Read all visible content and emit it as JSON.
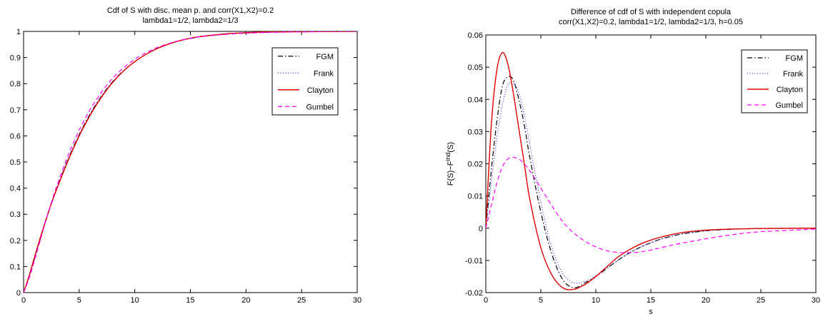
{
  "chart_data": [
    {
      "type": "line",
      "title_lines": [
        "Cdf of S with disc. mean p. and corr(X1,X2)=0.2",
        "lambda1=1/2, lambda2=1/3"
      ],
      "xlabel": "",
      "ylabel": "",
      "xlim": [
        0,
        30
      ],
      "ylim": [
        0,
        1
      ],
      "xticks": [
        0,
        5,
        10,
        15,
        20,
        25,
        30
      ],
      "xtick_labels": [
        "0",
        "5",
        "10",
        "15",
        "20",
        "25",
        "30"
      ],
      "yticks": [
        0,
        0.1,
        0.2,
        0.3,
        0.4,
        0.5,
        0.6,
        0.7,
        0.8,
        0.9,
        1
      ],
      "ytick_labels": [
        "0",
        "0.1",
        "0.2",
        "0.3",
        "0.4",
        "0.5",
        "0.6",
        "0.7",
        "0.8",
        "0.9",
        "1"
      ],
      "grid": false,
      "legend_position": "top-right",
      "x": [
        0,
        0.5,
        1,
        1.5,
        2,
        2.5,
        3,
        4,
        5,
        6,
        7,
        8,
        9,
        10,
        11,
        12,
        13,
        14,
        15,
        16,
        18,
        20,
        22,
        25,
        30
      ],
      "series": [
        {
          "name": "FGM",
          "color": "#000000",
          "dash": "dashdot",
          "values": [
            0,
            0.062,
            0.133,
            0.205,
            0.275,
            0.34,
            0.4,
            0.51,
            0.605,
            0.685,
            0.752,
            0.807,
            0.85,
            0.884,
            0.912,
            0.934,
            0.951,
            0.964,
            0.973,
            0.98,
            0.989,
            0.994,
            0.997,
            0.999,
            1.0
          ]
        },
        {
          "name": "Frank",
          "color": "#3030e0",
          "dash": "dotted",
          "values": [
            0,
            0.062,
            0.132,
            0.204,
            0.274,
            0.34,
            0.4,
            0.51,
            0.605,
            0.685,
            0.752,
            0.807,
            0.85,
            0.884,
            0.912,
            0.934,
            0.951,
            0.964,
            0.973,
            0.98,
            0.989,
            0.994,
            0.997,
            0.999,
            1.0
          ]
        },
        {
          "name": "Clayton",
          "color": "#e00000",
          "dash": "solid",
          "values": [
            0,
            0.065,
            0.138,
            0.21,
            0.278,
            0.342,
            0.398,
            0.505,
            0.6,
            0.68,
            0.748,
            0.804,
            0.849,
            0.884,
            0.912,
            0.934,
            0.951,
            0.964,
            0.974,
            0.981,
            0.99,
            0.995,
            0.998,
            0.999,
            1.0
          ]
        },
        {
          "name": "Gumbel",
          "color": "#ff00ff",
          "dash": "dashed",
          "values": [
            0,
            0.055,
            0.125,
            0.2,
            0.275,
            0.345,
            0.41,
            0.525,
            0.622,
            0.702,
            0.767,
            0.82,
            0.861,
            0.893,
            0.918,
            0.938,
            0.953,
            0.965,
            0.974,
            0.98,
            0.988,
            0.993,
            0.996,
            0.998,
            1.0
          ]
        }
      ]
    },
    {
      "type": "line",
      "title_lines": [
        "Difference of cdf of S with independent copula",
        "corr(X1,X2)=0.2, lambda1=1/2, lambda2=1/3, h=0.05"
      ],
      "xlabel": "s",
      "ylabel_main": "F(S)−F",
      "ylabel_sup": "ind",
      "ylabel_tail": "(S)",
      "xlim": [
        0,
        30
      ],
      "ylim": [
        -0.02,
        0.06
      ],
      "xticks": [
        0,
        5,
        10,
        15,
        20,
        25,
        30
      ],
      "xtick_labels": [
        "0",
        "5",
        "10",
        "15",
        "20",
        "25",
        "30"
      ],
      "yticks": [
        -0.02,
        -0.01,
        0,
        0.01,
        0.02,
        0.03,
        0.04,
        0.05,
        0.06
      ],
      "ytick_labels": [
        "-0.02",
        "-0.01",
        "0",
        "0.01",
        "0.02",
        "0.03",
        "0.04",
        "0.05",
        "0.06"
      ],
      "grid": false,
      "legend_position": "top-right",
      "x": [
        0,
        0.5,
        1,
        1.5,
        2,
        2.5,
        3,
        3.5,
        4,
        5,
        6,
        7,
        8,
        9,
        10,
        11,
        12,
        13,
        14,
        15,
        16,
        17,
        18,
        20,
        22,
        25,
        30
      ],
      "series": [
        {
          "name": "FGM",
          "color": "#000000",
          "dash": "dashdot",
          "values": [
            0,
            0.018,
            0.033,
            0.044,
            0.047,
            0.046,
            0.04,
            0.032,
            0.022,
            0.005,
            -0.008,
            -0.016,
            -0.0185,
            -0.017,
            -0.015,
            -0.0125,
            -0.01,
            -0.0078,
            -0.006,
            -0.0045,
            -0.0033,
            -0.0024,
            -0.0017,
            -0.0008,
            -0.0004,
            -0.0001,
            0.0
          ]
        },
        {
          "name": "Frank",
          "color": "#3030e0",
          "dash": "dotted",
          "values": [
            0,
            0.014,
            0.028,
            0.038,
            0.0445,
            0.045,
            0.042,
            0.035,
            0.026,
            0.008,
            -0.006,
            -0.014,
            -0.017,
            -0.0165,
            -0.0148,
            -0.0125,
            -0.01,
            -0.0078,
            -0.006,
            -0.0045,
            -0.0033,
            -0.0024,
            -0.0017,
            -0.0008,
            -0.0004,
            -0.0001,
            0.0
          ]
        },
        {
          "name": "Clayton",
          "color": "#e00000",
          "dash": "solid",
          "values": [
            0,
            0.032,
            0.049,
            0.0545,
            0.051,
            0.042,
            0.031,
            0.02,
            0.009,
            -0.006,
            -0.0145,
            -0.0185,
            -0.019,
            -0.0175,
            -0.015,
            -0.012,
            -0.009,
            -0.0068,
            -0.005,
            -0.0037,
            -0.0027,
            -0.0019,
            -0.0013,
            -0.0006,
            -0.0003,
            -0.0001,
            0.0
          ]
        },
        {
          "name": "Gumbel",
          "color": "#ff00ff",
          "dash": "dashed",
          "values": [
            0,
            0.007,
            0.014,
            0.019,
            0.0215,
            0.022,
            0.0215,
            0.02,
            0.0178,
            0.0125,
            0.007,
            0.002,
            -0.0015,
            -0.004,
            -0.0058,
            -0.007,
            -0.0075,
            -0.0076,
            -0.0074,
            -0.0068,
            -0.006,
            -0.0052,
            -0.0045,
            -0.0033,
            -0.0022,
            -0.0011,
            -0.0003
          ]
        }
      ]
    }
  ]
}
